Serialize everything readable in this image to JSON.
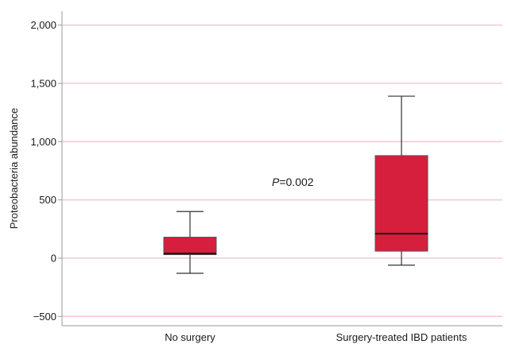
{
  "chart_data": {
    "type": "box",
    "title": "",
    "xlabel": "",
    "ylabel": "Proteobacteria abundance",
    "ylim": [
      -580,
      2120
    ],
    "yticks": [
      -500,
      0,
      500,
      1000,
      1500,
      2000
    ],
    "ytick_labels": [
      "−500",
      "0",
      "500",
      "1,000",
      "1,500",
      "2,000"
    ],
    "categories": [
      "No surgery",
      "Surgery-treated IBD patients"
    ],
    "boxes": [
      {
        "whisker_low": -130,
        "q1": 30,
        "median": 40,
        "q3": 180,
        "whisker_high": 400
      },
      {
        "whisker_low": -60,
        "q1": 60,
        "median": 210,
        "q3": 880,
        "whisker_high": 1390
      }
    ],
    "annotation": {
      "italic": "P",
      "text": "=0.002"
    },
    "colors": {
      "box_fill": "#d51f3c",
      "gridline": "#f0c9cf",
      "axis": "#9a9a9a",
      "whisker": "#333333"
    },
    "grid": true,
    "legend": "none"
  }
}
